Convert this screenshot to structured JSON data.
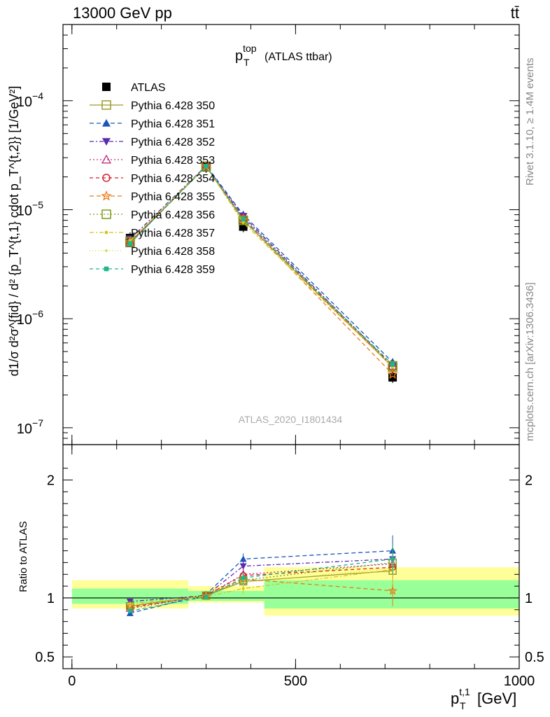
{
  "header": {
    "energy_label": "13000 GeV pp",
    "process_label": "tt̄"
  },
  "side": {
    "rivet_label": "Rivet 3.1.10, ≥ 1.4M events",
    "source_label": "mcplots.cern.ch [arXiv:1306.3436]"
  },
  "chart_data": [
    {
      "type": "line",
      "panel": "main",
      "title_main": "p",
      "title_sup": "top",
      "title_sub": "T",
      "title_suffix": "(ATLAS ttbar)",
      "watermark": "ATLAS_2020_I1801434",
      "yscale": "log",
      "ylim": [
        7e-08,
        0.0005
      ],
      "xlim": [
        -20,
        1000
      ],
      "y_ticks": [
        {
          "value": 1e-07,
          "label": "10",
          "exp": "−7"
        },
        {
          "value": 1e-06,
          "label": "10",
          "exp": "−6"
        },
        {
          "value": 1e-05,
          "label": "10",
          "exp": "−5"
        },
        {
          "value": 0.0001,
          "label": "10",
          "exp": "−4"
        }
      ],
      "ylabel": "d1/σ d²σ^{fid} / d² {p_T^{t,1} cdot p_T^{t,2}} [1/GeV²]",
      "x": [
        130,
        300,
        383,
        717
      ],
      "series": [
        {
          "name": "ATLAS",
          "color": "#000000",
          "marker": "filled-square",
          "dash": "none",
          "values": [
            5.5e-06,
            2.45e-05,
            7e-06,
            2.9e-07
          ]
        },
        {
          "name": "Pythia 6.428 350",
          "color": "#9a9a2a",
          "marker": "open-square",
          "dash": "solid",
          "values": [
            5e-06,
            2.5e-05,
            8e-06,
            3.6e-07
          ]
        },
        {
          "name": "Pythia 6.428 351",
          "color": "#1a56b8",
          "marker": "filled-triangle-up",
          "dash": "6,4",
          "values": [
            4.9e-06,
            2.55e-05,
            9e-06,
            4e-07
          ]
        },
        {
          "name": "Pythia 6.428 352",
          "color": "#5a2ab0",
          "marker": "filled-triangle-down",
          "dash": "6,3,2,3",
          "values": [
            5.4e-06,
            2.52e-05,
            8.7e-06,
            3.7e-07
          ]
        },
        {
          "name": "Pythia 6.428 353",
          "color": "#c0307a",
          "marker": "open-triangle-up",
          "dash": "2,3",
          "values": [
            5e-06,
            2.5e-05,
            8.4e-06,
            3.7e-07
          ]
        },
        {
          "name": "Pythia 6.428 354",
          "color": "#d81e2a",
          "marker": "open-circle",
          "dash": "5,4",
          "values": [
            5e-06,
            2.5e-05,
            8.3e-06,
            3.6e-07
          ]
        },
        {
          "name": "Pythia 6.428 355",
          "color": "#ee7a1a",
          "marker": "open-star",
          "dash": "6,4",
          "values": [
            5.1e-06,
            2.5e-05,
            8.1e-06,
            3.1e-07
          ]
        },
        {
          "name": "Pythia 6.428 356",
          "color": "#7a9a1a",
          "marker": "open-square",
          "dash": "2,3",
          "values": [
            5.1e-06,
            2.5e-05,
            8e-06,
            3.7e-07
          ]
        },
        {
          "name": "Pythia 6.428 357",
          "color": "#d8c21a",
          "marker": "filled-dot",
          "dash": "6,3,2,3",
          "values": [
            5.2e-06,
            2.5e-05,
            7.6e-06,
            3.6e-07
          ]
        },
        {
          "name": "Pythia 6.428 358",
          "color": "#c8d83a",
          "marker": "small-dot",
          "dash": "1,3",
          "values": [
            5.1e-06,
            2.5e-05,
            7.9e-06,
            3.6e-07
          ]
        },
        {
          "name": "Pythia 6.428 359",
          "color": "#1ab88a",
          "marker": "filled-small-square",
          "dash": "5,4",
          "values": [
            4.9e-06,
            2.5e-05,
            8.2e-06,
            3.8e-07
          ]
        }
      ]
    },
    {
      "type": "line",
      "panel": "ratio",
      "ylabel": "Ratio to ATLAS",
      "xlabel_main": "p",
      "xlabel_sup": "t,1",
      "xlabel_sub": "T",
      "xlabel_suffix": "[GeV]",
      "ylim": [
        0.4,
        2.3
      ],
      "xlim": [
        -20,
        1000
      ],
      "y_ticks": [
        {
          "value": 0.5,
          "label": "0.5"
        },
        {
          "value": 1,
          "label": "1"
        },
        {
          "value": 2,
          "label": "2"
        }
      ],
      "x_ticks": [
        {
          "value": 0,
          "label": "0"
        },
        {
          "value": 500,
          "label": "500"
        },
        {
          "value": 1000,
          "label": "1000"
        }
      ],
      "bins": [
        {
          "lo": 0,
          "hi": 260,
          "stat": [
            0.95,
            1.08
          ],
          "total": [
            0.91,
            1.15
          ]
        },
        {
          "lo": 260,
          "hi": 340,
          "stat": [
            0.975,
            1.06
          ],
          "total": [
            0.96,
            1.1
          ]
        },
        {
          "lo": 340,
          "hi": 430,
          "stat": [
            0.975,
            1.06
          ],
          "total": [
            0.96,
            1.1
          ]
        },
        {
          "lo": 430,
          "hi": 1000,
          "stat": [
            0.91,
            1.15
          ],
          "total": [
            0.85,
            1.26
          ]
        }
      ],
      "x": [
        130,
        300,
        383,
        717
      ],
      "series": [
        {
          "name": "Pythia 6.428 350",
          "values": [
            0.93,
            1.02,
            1.14,
            1.23
          ]
        },
        {
          "name": "Pythia 6.428 351",
          "values": [
            0.87,
            1.03,
            1.33,
            1.4
          ]
        },
        {
          "name": "Pythia 6.428 352",
          "values": [
            0.97,
            1.02,
            1.27,
            1.33
          ]
        },
        {
          "name": "Pythia 6.428 353",
          "values": [
            0.91,
            1.02,
            1.2,
            1.29
          ]
        },
        {
          "name": "Pythia 6.428 354",
          "values": [
            0.92,
            1.02,
            1.19,
            1.26
          ]
        },
        {
          "name": "Pythia 6.428 355",
          "values": [
            0.93,
            1.02,
            1.16,
            1.06
          ]
        },
        {
          "name": "Pythia 6.428 356",
          "values": [
            0.93,
            1.02,
            1.15,
            1.3
          ]
        },
        {
          "name": "Pythia 6.428 357",
          "values": [
            0.95,
            1.01,
            1.08,
            1.24
          ]
        },
        {
          "name": "Pythia 6.428 358",
          "values": [
            0.93,
            1.02,
            1.13,
            1.25
          ]
        },
        {
          "name": "Pythia 6.428 359",
          "values": [
            0.89,
            1.01,
            1.17,
            1.33
          ]
        }
      ]
    }
  ]
}
